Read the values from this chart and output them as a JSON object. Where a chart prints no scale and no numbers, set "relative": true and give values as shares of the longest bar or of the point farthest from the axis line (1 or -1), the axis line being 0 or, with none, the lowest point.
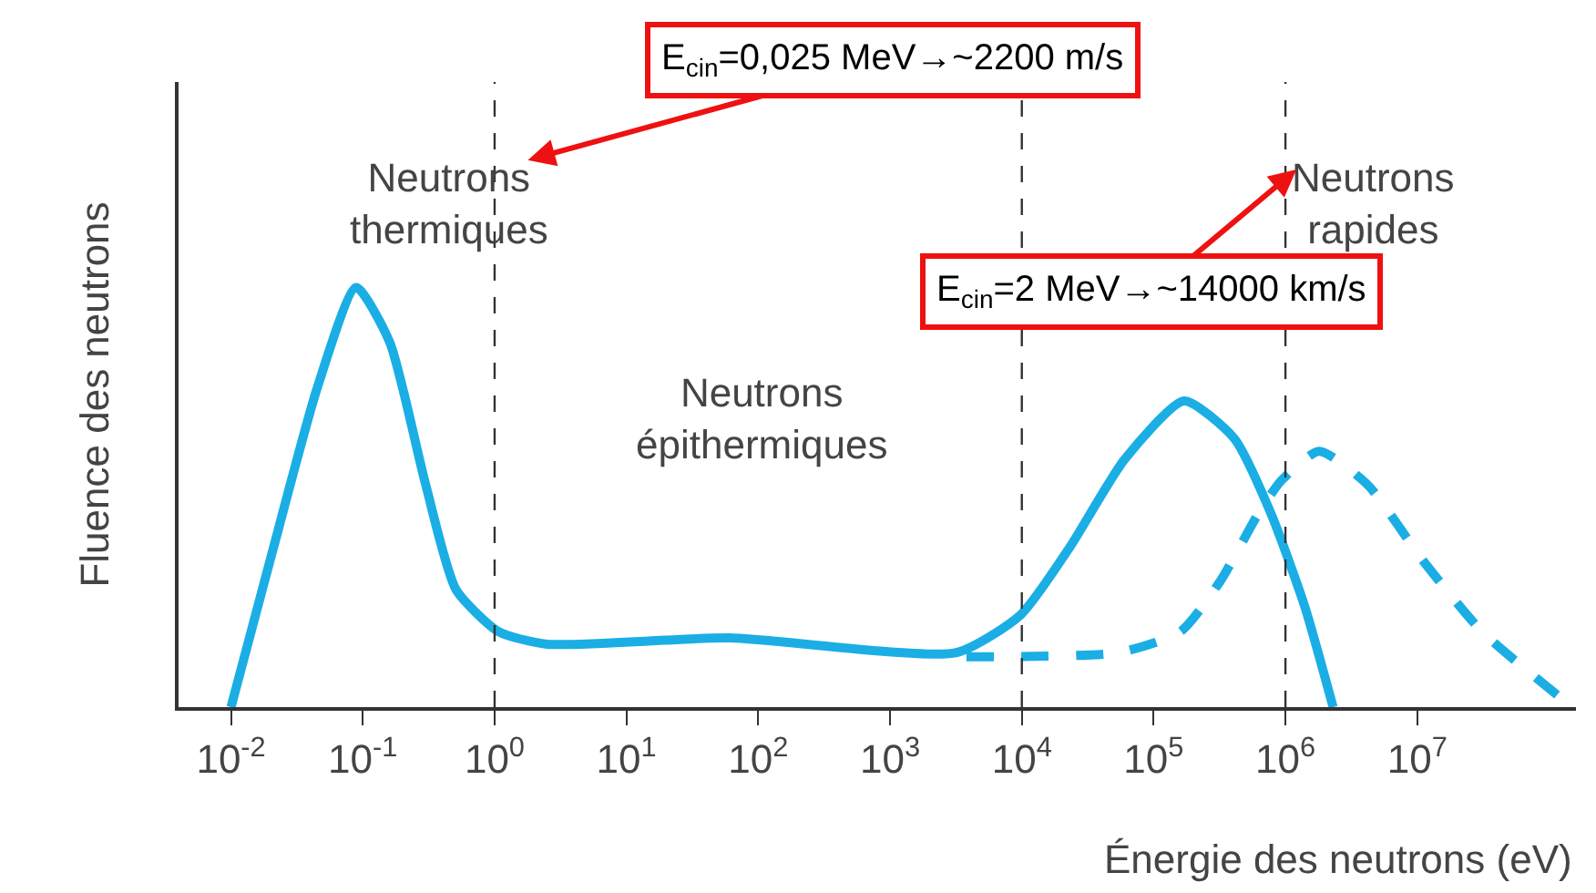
{
  "chart_data": {
    "type": "line",
    "relative": true,
    "log": "x",
    "xlabel": "Énergie des neutrons (eV)",
    "ylabel": "Fluence des neutrons",
    "xlim": [
      0.004,
      160000000
    ],
    "xticks": [
      {
        "value": 0.01,
        "label": "10$^{-2}$"
      },
      {
        "value": 0.1,
        "label": "10$^{-1}$"
      },
      {
        "value": 1,
        "label": "10$^{0}$"
      },
      {
        "value": 10,
        "label": "10$^{1}$"
      },
      {
        "value": 100,
        "label": "10$^{2}$"
      },
      {
        "value": 1000,
        "label": "10$^{3}$"
      },
      {
        "value": 10000,
        "label": "10$^{4}$"
      },
      {
        "value": 100000,
        "label": "10$^{5}$"
      },
      {
        "value": 1000000,
        "label": "10$^{6}$"
      },
      {
        "value": 10000000,
        "label": "10$^{7}$"
      }
    ],
    "series": [
      {
        "color": "#1aaee5",
        "line_style": "solid",
        "x": [
          0.01,
          0.021,
          0.045,
          0.089,
          0.16,
          0.3,
          0.51,
          1.07,
          2.5,
          60,
          3200,
          9800,
          23000,
          60000,
          170000,
          410000,
          780000,
          1400000,
          2300000
        ],
        "values": [
          0,
          0.38,
          0.76,
          1.0,
          0.87,
          0.53,
          0.28,
          0.18,
          0.15,
          0.165,
          0.13,
          0.22,
          0.38,
          0.59,
          0.73,
          0.64,
          0.46,
          0.24,
          0
        ]
      },
      {
        "color": "#1aaee5",
        "line_style": "dashed",
        "x": [
          3800,
          54000,
          160000,
          320000,
          620000,
          930000,
          1800000,
          4200000,
          11000000,
          31000000,
          150000000
        ],
        "values": [
          0.12,
          0.13,
          0.18,
          0.3,
          0.46,
          0.54,
          0.61,
          0.53,
          0.35,
          0.18,
          0
        ]
      }
    ],
    "ref_lines": [
      {
        "axis": "x",
        "value": 1,
        "line_style": "dashed",
        "color": "#333333"
      },
      {
        "axis": "x",
        "value": 10000,
        "line_style": "dashed",
        "color": "#333333"
      },
      {
        "axis": "x",
        "value": 1000000,
        "line_style": "dashed",
        "color": "#333333"
      }
    ],
    "annotations": [
      "Neutrons\nthermiques",
      "Neutrons\népithermiques",
      "Neutrons\nrapides",
      "E$_{cin}$=0,025 MeV→~2200 m/s",
      "E$_{cin}$=2 MeV→~14000 km/s"
    ]
  }
}
